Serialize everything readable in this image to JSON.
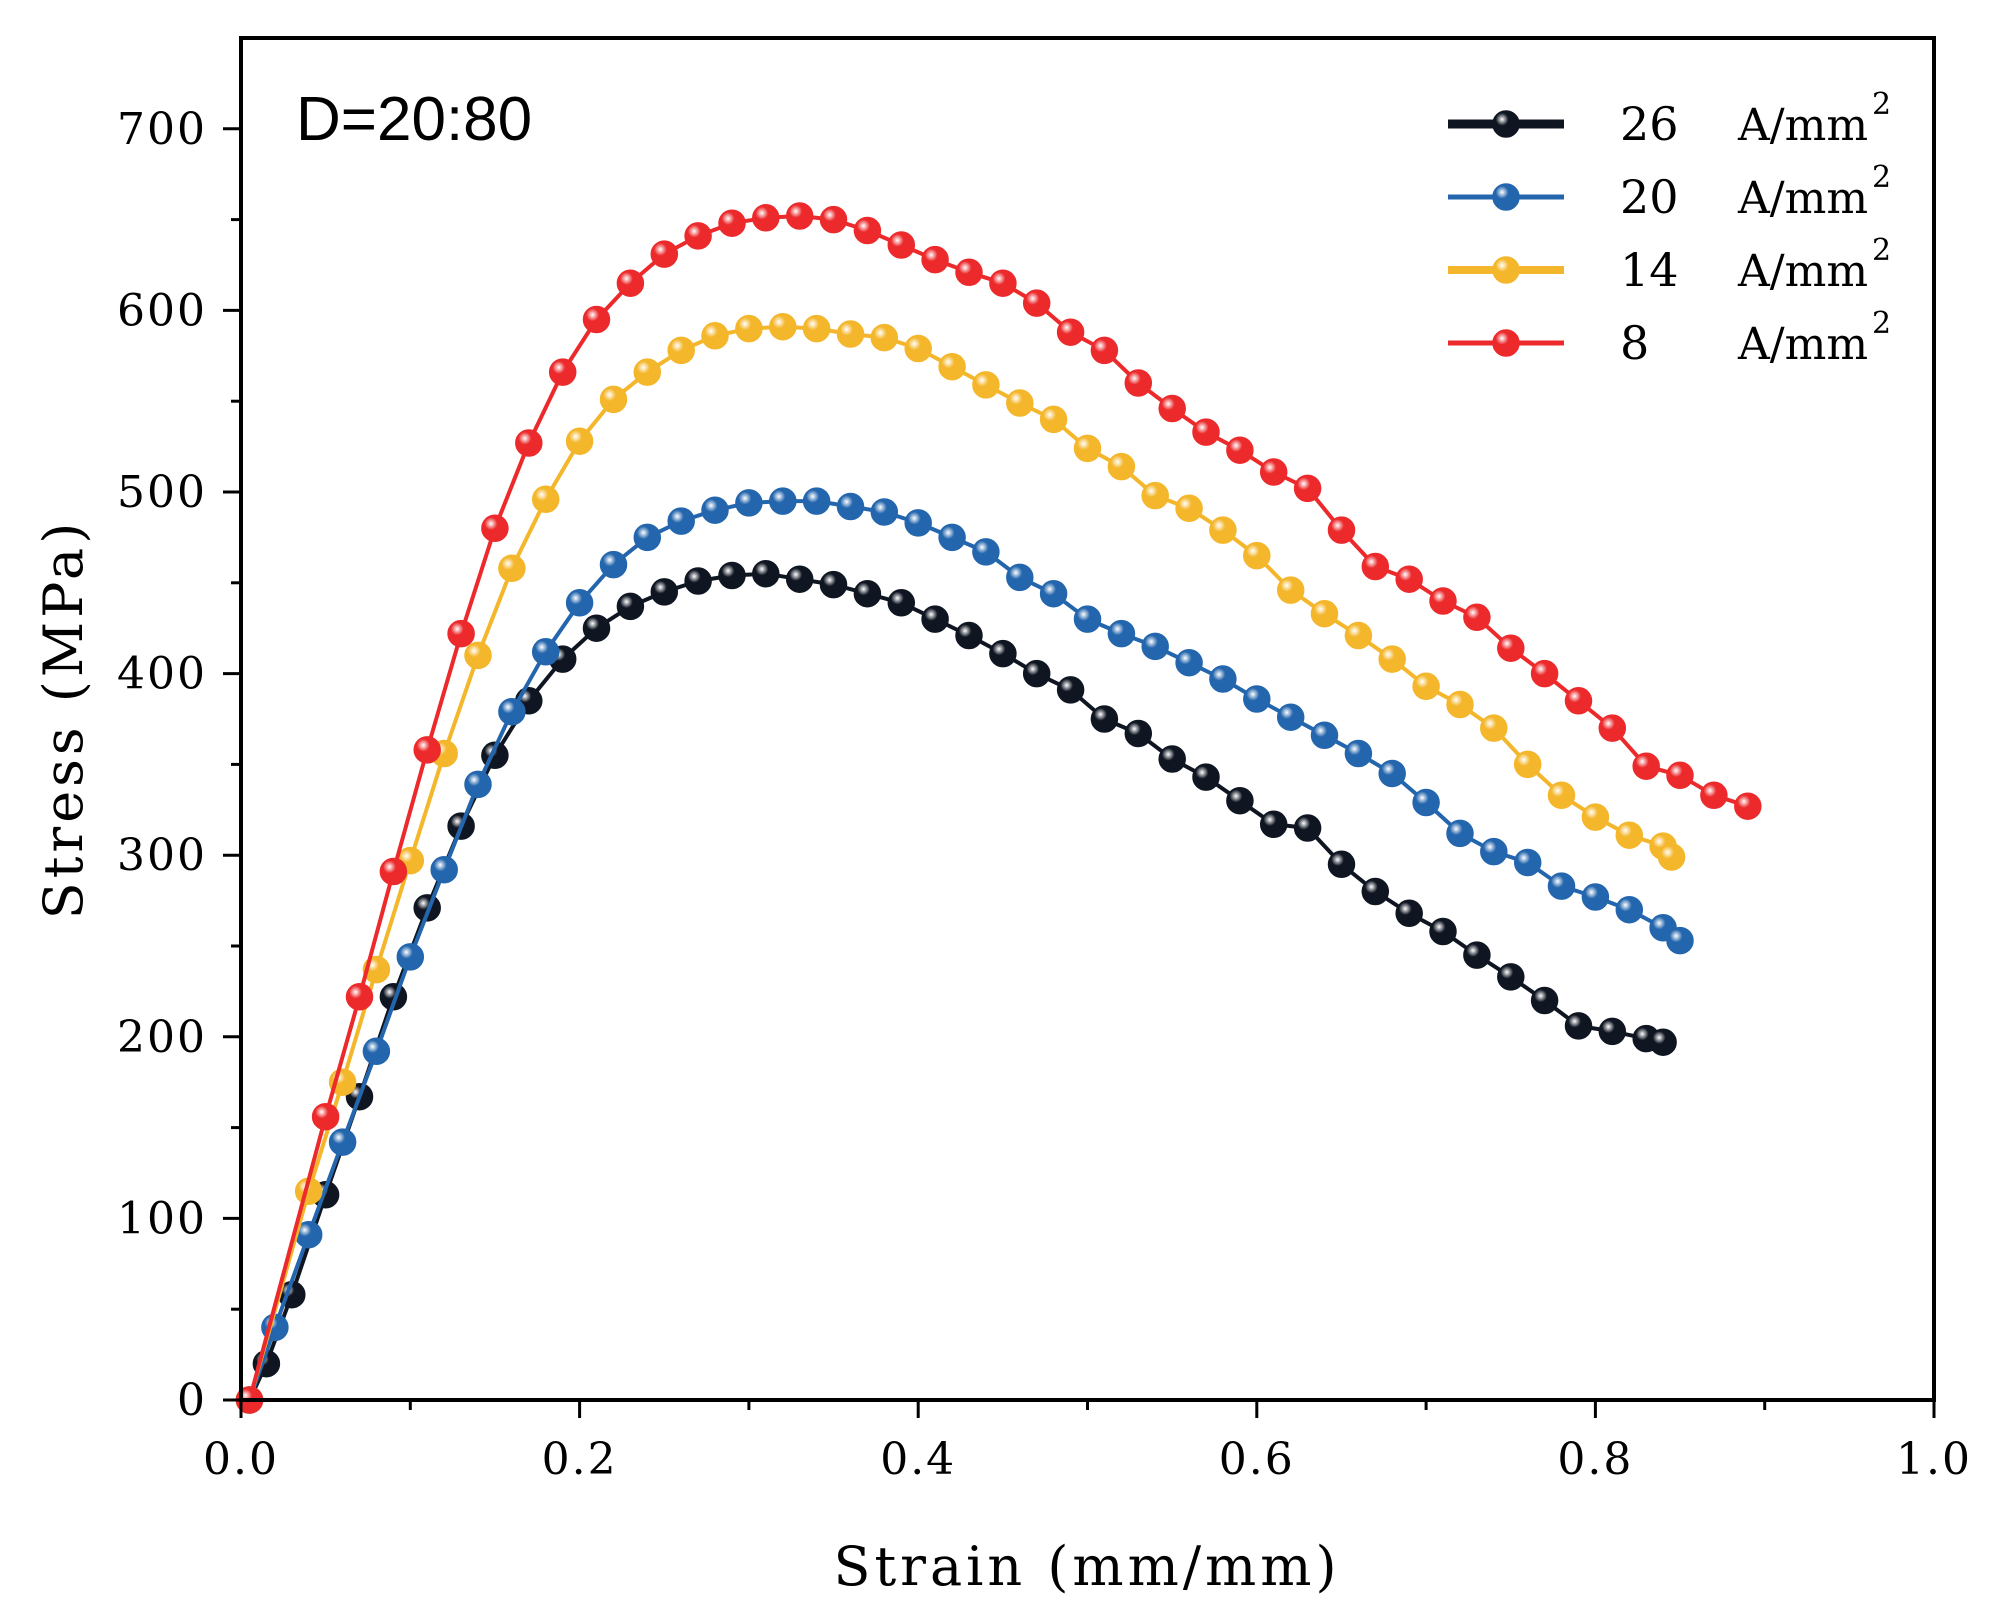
{
  "chart_data": {
    "type": "line",
    "title": "",
    "annotation": "D=20:80",
    "xlabel": "Strain (mm/mm)",
    "ylabel": "Stress (MPa)",
    "xlim": [
      0.0,
      1.0
    ],
    "ylim": [
      0,
      750
    ],
    "xticks": [
      0.0,
      0.2,
      0.4,
      0.6,
      0.8,
      1.0
    ],
    "xtick_labels": [
      "0.0",
      "0.2",
      "0.4",
      "0.6",
      "0.8",
      "1.0"
    ],
    "yticks": [
      0,
      100,
      200,
      300,
      400,
      500,
      600,
      700
    ],
    "ytick_labels": [
      "0",
      "100",
      "200",
      "300",
      "400",
      "500",
      "600",
      "700"
    ],
    "grid": false,
    "legend_position": "top-right",
    "series": [
      {
        "name": "26 A/mm2",
        "legend_value": "26",
        "legend_unit": "A/mm",
        "legend_sup": "2",
        "color": "#0f1622",
        "points": [
          [
            0.005,
            0
          ],
          [
            0.015,
            20
          ],
          [
            0.03,
            58
          ],
          [
            0.05,
            113
          ],
          [
            0.07,
            167
          ],
          [
            0.09,
            222
          ],
          [
            0.11,
            271
          ],
          [
            0.13,
            316
          ],
          [
            0.15,
            355
          ],
          [
            0.17,
            385
          ],
          [
            0.19,
            408
          ],
          [
            0.21,
            425
          ],
          [
            0.23,
            437
          ],
          [
            0.25,
            445
          ],
          [
            0.27,
            451
          ],
          [
            0.29,
            454
          ],
          [
            0.31,
            455
          ],
          [
            0.33,
            452
          ],
          [
            0.35,
            449
          ],
          [
            0.37,
            444
          ],
          [
            0.39,
            439
          ],
          [
            0.41,
            430
          ],
          [
            0.43,
            421
          ],
          [
            0.45,
            411
          ],
          [
            0.47,
            400
          ],
          [
            0.49,
            391
          ],
          [
            0.51,
            375
          ],
          [
            0.53,
            367
          ],
          [
            0.55,
            353
          ],
          [
            0.57,
            343
          ],
          [
            0.59,
            330
          ],
          [
            0.61,
            317
          ],
          [
            0.63,
            315
          ],
          [
            0.65,
            295
          ],
          [
            0.67,
            280
          ],
          [
            0.69,
            268
          ],
          [
            0.71,
            258
          ],
          [
            0.73,
            245
          ],
          [
            0.75,
            233
          ],
          [
            0.77,
            220
          ],
          [
            0.79,
            206
          ],
          [
            0.81,
            203
          ],
          [
            0.83,
            199
          ],
          [
            0.84,
            197
          ]
        ]
      },
      {
        "name": "20 A/mm2",
        "legend_value": "20",
        "legend_unit": "A/mm",
        "legend_sup": "2",
        "color": "#2466ad",
        "points": [
          [
            0.005,
            0
          ],
          [
            0.02,
            40
          ],
          [
            0.04,
            91
          ],
          [
            0.06,
            142
          ],
          [
            0.08,
            192
          ],
          [
            0.1,
            244
          ],
          [
            0.12,
            292
          ],
          [
            0.14,
            339
          ],
          [
            0.16,
            379
          ],
          [
            0.18,
            412
          ],
          [
            0.2,
            439
          ],
          [
            0.22,
            460
          ],
          [
            0.24,
            475
          ],
          [
            0.26,
            484
          ],
          [
            0.28,
            490
          ],
          [
            0.3,
            494
          ],
          [
            0.32,
            495
          ],
          [
            0.34,
            495
          ],
          [
            0.36,
            492
          ],
          [
            0.38,
            489
          ],
          [
            0.4,
            483
          ],
          [
            0.42,
            475
          ],
          [
            0.44,
            467
          ],
          [
            0.46,
            453
          ],
          [
            0.48,
            444
          ],
          [
            0.5,
            430
          ],
          [
            0.52,
            422
          ],
          [
            0.54,
            415
          ],
          [
            0.56,
            406
          ],
          [
            0.58,
            397
          ],
          [
            0.6,
            386
          ],
          [
            0.62,
            376
          ],
          [
            0.64,
            366
          ],
          [
            0.66,
            356
          ],
          [
            0.68,
            345
          ],
          [
            0.7,
            329
          ],
          [
            0.72,
            312
          ],
          [
            0.74,
            302
          ],
          [
            0.76,
            296
          ],
          [
            0.78,
            283
          ],
          [
            0.8,
            277
          ],
          [
            0.82,
            270
          ],
          [
            0.84,
            260
          ],
          [
            0.85,
            253
          ]
        ]
      },
      {
        "name": "14 A/mm2",
        "legend_value": "14",
        "legend_unit": "A/mm",
        "legend_sup": "2",
        "color": "#f4b62a",
        "points": [
          [
            0.005,
            0
          ],
          [
            0.04,
            115
          ],
          [
            0.06,
            175
          ],
          [
            0.08,
            237
          ],
          [
            0.1,
            297
          ],
          [
            0.12,
            356
          ],
          [
            0.14,
            410
          ],
          [
            0.16,
            458
          ],
          [
            0.18,
            496
          ],
          [
            0.2,
            528
          ],
          [
            0.22,
            551
          ],
          [
            0.24,
            566
          ],
          [
            0.26,
            578
          ],
          [
            0.28,
            586
          ],
          [
            0.3,
            590
          ],
          [
            0.32,
            591
          ],
          [
            0.34,
            590
          ],
          [
            0.36,
            587
          ],
          [
            0.38,
            585
          ],
          [
            0.4,
            579
          ],
          [
            0.42,
            569
          ],
          [
            0.44,
            559
          ],
          [
            0.46,
            549
          ],
          [
            0.48,
            540
          ],
          [
            0.5,
            524
          ],
          [
            0.52,
            514
          ],
          [
            0.54,
            498
          ],
          [
            0.56,
            491
          ],
          [
            0.58,
            479
          ],
          [
            0.6,
            465
          ],
          [
            0.62,
            446
          ],
          [
            0.64,
            433
          ],
          [
            0.66,
            421
          ],
          [
            0.68,
            408
          ],
          [
            0.7,
            393
          ],
          [
            0.72,
            383
          ],
          [
            0.74,
            370
          ],
          [
            0.76,
            350
          ],
          [
            0.78,
            333
          ],
          [
            0.8,
            321
          ],
          [
            0.82,
            311
          ],
          [
            0.84,
            305
          ],
          [
            0.845,
            299
          ]
        ]
      },
      {
        "name": "8 A/mm2",
        "legend_value": "8",
        "legend_unit": "A/mm",
        "legend_sup": "2",
        "color": "#ec2a2c",
        "points": [
          [
            0.005,
            0
          ],
          [
            0.05,
            156
          ],
          [
            0.07,
            222
          ],
          [
            0.09,
            291
          ],
          [
            0.11,
            358
          ],
          [
            0.13,
            422
          ],
          [
            0.15,
            480
          ],
          [
            0.17,
            527
          ],
          [
            0.19,
            566
          ],
          [
            0.21,
            595
          ],
          [
            0.23,
            615
          ],
          [
            0.25,
            631
          ],
          [
            0.27,
            641
          ],
          [
            0.29,
            648
          ],
          [
            0.31,
            651
          ],
          [
            0.33,
            652
          ],
          [
            0.35,
            650
          ],
          [
            0.37,
            644
          ],
          [
            0.39,
            636
          ],
          [
            0.41,
            628
          ],
          [
            0.43,
            621
          ],
          [
            0.45,
            615
          ],
          [
            0.47,
            604
          ],
          [
            0.49,
            588
          ],
          [
            0.51,
            578
          ],
          [
            0.53,
            560
          ],
          [
            0.55,
            546
          ],
          [
            0.57,
            533
          ],
          [
            0.59,
            523
          ],
          [
            0.61,
            511
          ],
          [
            0.63,
            502
          ],
          [
            0.65,
            479
          ],
          [
            0.67,
            459
          ],
          [
            0.69,
            452
          ],
          [
            0.71,
            440
          ],
          [
            0.73,
            431
          ],
          [
            0.75,
            414
          ],
          [
            0.77,
            400
          ],
          [
            0.79,
            385
          ],
          [
            0.81,
            370
          ],
          [
            0.83,
            349
          ],
          [
            0.85,
            344
          ],
          [
            0.87,
            333
          ],
          [
            0.89,
            327
          ]
        ]
      }
    ]
  }
}
